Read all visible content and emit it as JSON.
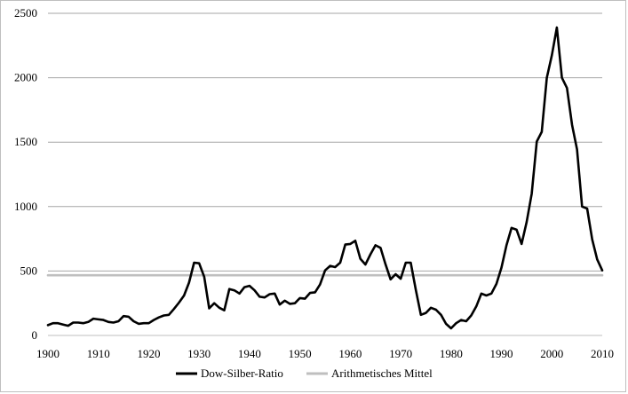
{
  "chart_data": {
    "type": "line",
    "title": "",
    "xlabel": "",
    "ylabel": "",
    "xlim": [
      1900,
      2010
    ],
    "ylim": [
      0,
      2500
    ],
    "x_ticks": [
      1900,
      1910,
      1920,
      1930,
      1940,
      1950,
      1960,
      1970,
      1980,
      1990,
      2000,
      2010
    ],
    "y_ticks": [
      0,
      500,
      1000,
      1500,
      2000,
      2500
    ],
    "grid": "horizontal",
    "legend_position": "bottom",
    "series": [
      {
        "name": "Dow-Silber-Ratio",
        "color": "#000000",
        "x": [
          1900,
          1901,
          1902,
          1903,
          1904,
          1905,
          1906,
          1907,
          1908,
          1909,
          1910,
          1911,
          1912,
          1913,
          1914,
          1915,
          1916,
          1917,
          1918,
          1919,
          1920,
          1921,
          1922,
          1923,
          1924,
          1925,
          1926,
          1927,
          1928,
          1929,
          1930,
          1931,
          1932,
          1933,
          1934,
          1935,
          1936,
          1937,
          1938,
          1939,
          1940,
          1941,
          1942,
          1943,
          1944,
          1945,
          1946,
          1947,
          1948,
          1949,
          1950,
          1951,
          1952,
          1953,
          1954,
          1955,
          1956,
          1957,
          1958,
          1959,
          1960,
          1961,
          1962,
          1963,
          1964,
          1965,
          1966,
          1967,
          1968,
          1969,
          1970,
          1971,
          1972,
          1973,
          1974,
          1975,
          1976,
          1977,
          1978,
          1979,
          1980,
          1981,
          1982,
          1983,
          1984,
          1985,
          1986,
          1987,
          1988,
          1989,
          1990,
          1991,
          1992,
          1993,
          1994,
          1995,
          1996,
          1997,
          1998,
          1999,
          2000,
          2001,
          2002,
          2003,
          2004,
          2005,
          2006,
          2007,
          2008,
          2009,
          2010
        ],
        "values": [
          80,
          95,
          95,
          85,
          75,
          100,
          100,
          95,
          105,
          130,
          125,
          120,
          105,
          100,
          110,
          150,
          145,
          110,
          90,
          95,
          95,
          120,
          140,
          155,
          160,
          205,
          255,
          310,
          410,
          565,
          560,
          455,
          210,
          250,
          215,
          195,
          360,
          350,
          325,
          375,
          385,
          350,
          300,
          295,
          320,
          325,
          240,
          270,
          245,
          250,
          290,
          285,
          330,
          335,
          395,
          505,
          540,
          530,
          565,
          705,
          710,
          735,
          595,
          550,
          630,
          700,
          680,
          550,
          435,
          475,
          440,
          565,
          565,
          355,
          160,
          175,
          215,
          200,
          160,
          90,
          55,
          95,
          120,
          110,
          155,
          225,
          325,
          310,
          325,
          400,
          525,
          700,
          835,
          820,
          710,
          880,
          1100,
          1505,
          1580,
          2000,
          2175,
          2390,
          2000,
          1920,
          1635,
          1445,
          1000,
          985,
          745,
          590,
          505
        ]
      },
      {
        "name": "Arithmetisches Mittel",
        "color": "#bfbfbf",
        "x": [
          1900,
          2010
        ],
        "values": [
          467,
          467
        ]
      }
    ]
  }
}
